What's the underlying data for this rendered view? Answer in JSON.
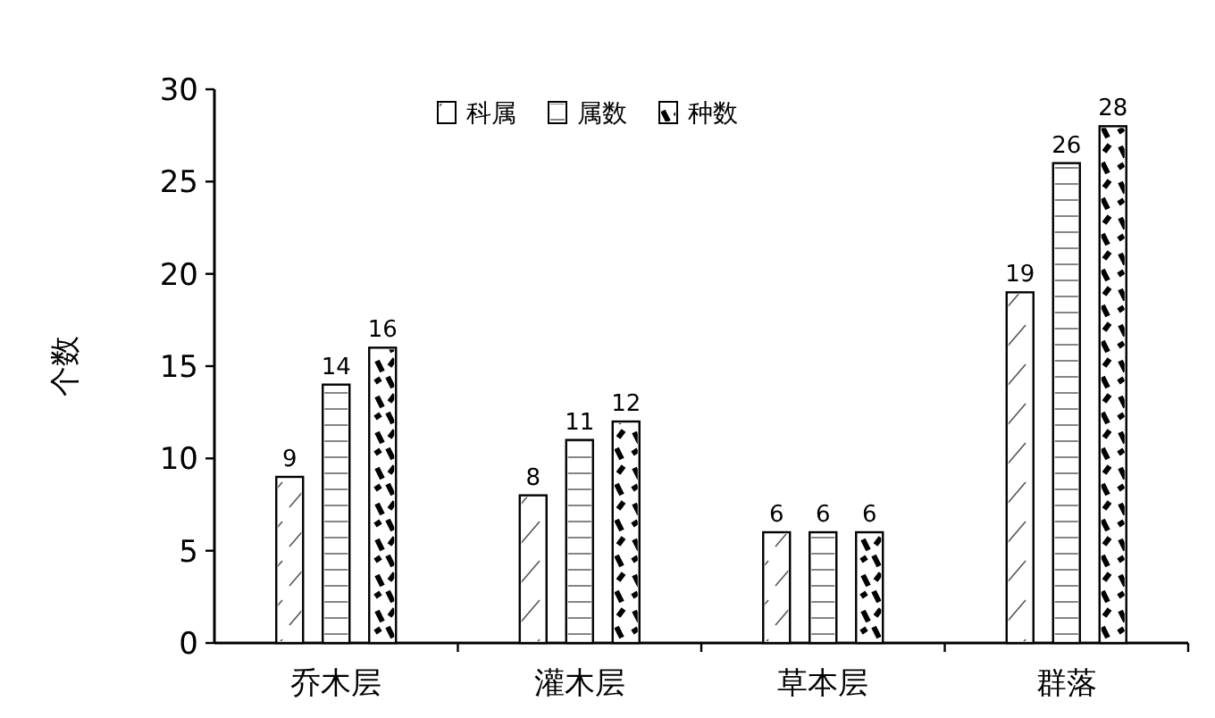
{
  "chart_data": {
    "type": "bar",
    "ylabel": "个数",
    "categories": [
      "乔木层",
      "灌木层",
      "草本层",
      "群落"
    ],
    "series": [
      {
        "name": "科属",
        "color": "#ffffff",
        "values": [
          9,
          8,
          6,
          19
        ]
      },
      {
        "name": "属数",
        "color": "#ffffff",
        "values": [
          14,
          11,
          6,
          26
        ]
      },
      {
        "name": "种数",
        "color": "#ffffff",
        "values": [
          16,
          12,
          6,
          28
        ]
      }
    ],
    "ylim": [
      0,
      30
    ],
    "yticks": [
      0,
      5,
      10,
      15,
      20,
      25,
      30
    ],
    "data_labels": true,
    "legend": "top",
    "grid": false
  }
}
